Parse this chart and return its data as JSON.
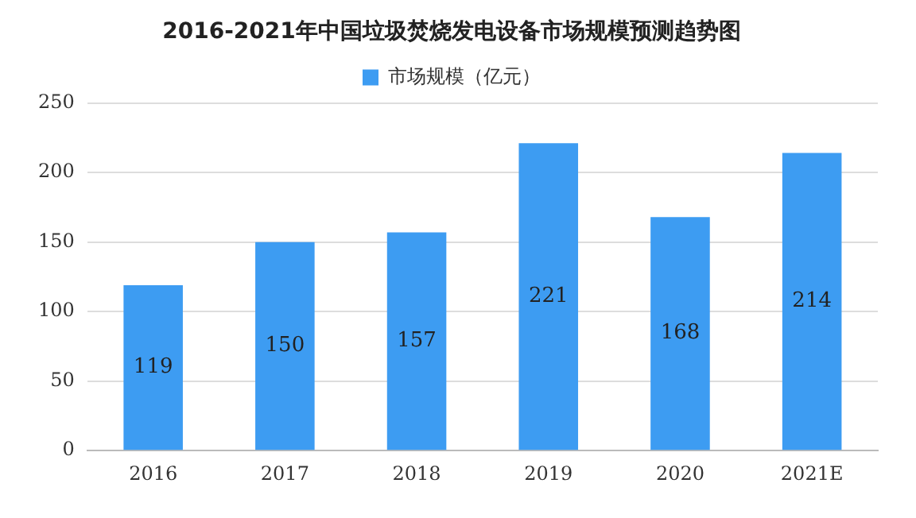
{
  "chart_data": {
    "type": "bar",
    "title": "2016-2021年中国垃圾焚烧发电设备市场规模预测趋势图",
    "categories": [
      "2016",
      "2017",
      "2018",
      "2019",
      "2020",
      "2021E"
    ],
    "series": [
      {
        "name": "市场规模（亿元）",
        "color": "#3d9cf2",
        "values": [
          119,
          150,
          157,
          221,
          168,
          214
        ]
      }
    ],
    "ylim": [
      0,
      250
    ],
    "yticks": [
      0,
      50,
      100,
      150,
      200,
      250
    ],
    "grid": "y",
    "legend": "top",
    "data_labels": true
  }
}
